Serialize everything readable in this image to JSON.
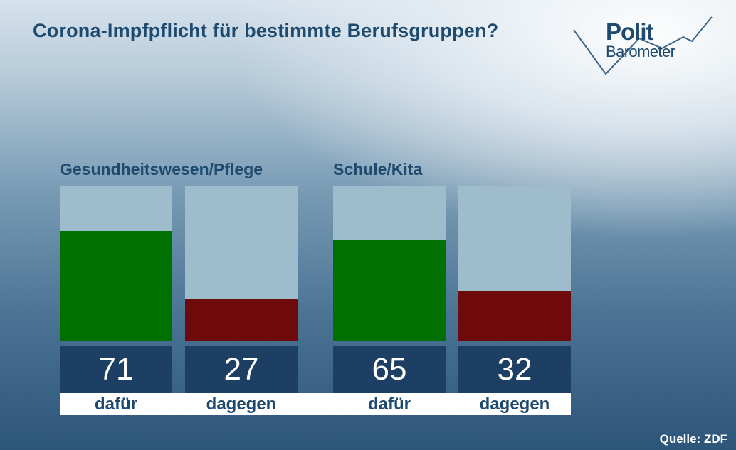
{
  "title": "Corona-Impfpflicht für bestimmte Berufsgruppen?",
  "logo": {
    "line1": "Polit",
    "line2": "Barometer"
  },
  "source": "Quelle: ZDF",
  "colors": {
    "dafuer": "#007000",
    "dagegen": "#6e0a0c",
    "bar_background": "#9fbccd",
    "value_box": "#1c3f63",
    "text": "#1d4a6e"
  },
  "chart_data": {
    "type": "bar",
    "title": "Corona-Impfpflicht für bestimmte Berufsgruppen?",
    "ylim": [
      0,
      100
    ],
    "groups": [
      {
        "label": "Gesundheitswesen/Pflege",
        "bars": [
          {
            "category": "dafür",
            "value": 71,
            "display": "71"
          },
          {
            "category": "dagegen",
            "value": 27,
            "display": "27"
          }
        ]
      },
      {
        "label": "Schule/Kita",
        "bars": [
          {
            "category": "dafür",
            "value": 65,
            "display": "65"
          },
          {
            "category": "dagegen",
            "value": 32,
            "display": "32"
          }
        ]
      }
    ]
  }
}
